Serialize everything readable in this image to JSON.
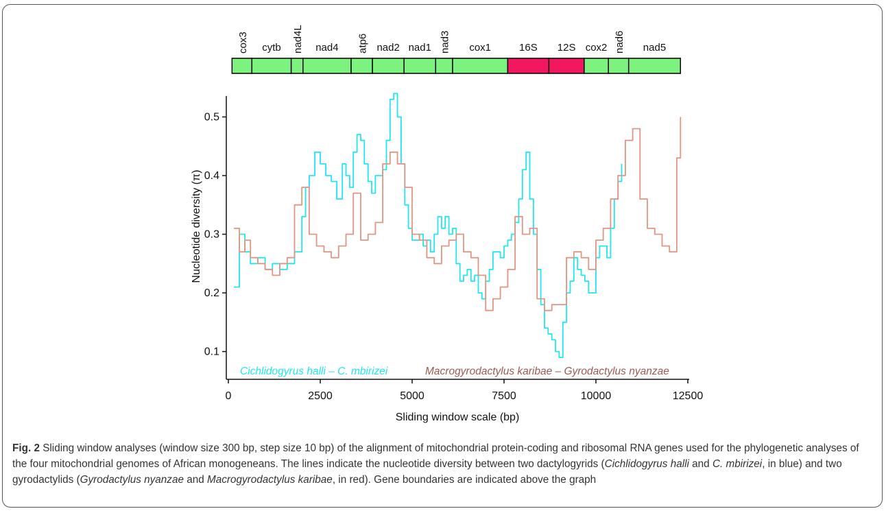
{
  "chart_data": {
    "type": "line",
    "xlabel": "Sliding window scale (bp)",
    "ylabel": "Nucleotide diversity (π)",
    "xlim": [
      0,
      12500
    ],
    "ylim": [
      0.055,
      0.545
    ],
    "xticks": [
      0,
      2500,
      5000,
      7500,
      10000,
      12500
    ],
    "yticks": [
      0.1,
      0.2,
      0.3,
      0.4,
      0.5
    ],
    "grid": false,
    "gene_map": [
      {
        "name": "cox3",
        "start": 100,
        "end": 640,
        "type": "protein",
        "rotated": true
      },
      {
        "name": "cytb",
        "start": 640,
        "end": 1710,
        "type": "protein",
        "rotated": false
      },
      {
        "name": "nad4L",
        "start": 1710,
        "end": 2030,
        "type": "protein",
        "rotated": true
      },
      {
        "name": "nad4",
        "start": 2030,
        "end": 3340,
        "type": "protein",
        "rotated": false
      },
      {
        "name": "atp6",
        "start": 3340,
        "end": 3920,
        "type": "protein",
        "rotated": true
      },
      {
        "name": "nad2",
        "start": 3920,
        "end": 4780,
        "type": "protein",
        "rotated": false
      },
      {
        "name": "nad1",
        "start": 4780,
        "end": 5640,
        "type": "protein",
        "rotated": false
      },
      {
        "name": "nad3",
        "start": 5640,
        "end": 6100,
        "type": "protein",
        "rotated": true
      },
      {
        "name": "cox1",
        "start": 6100,
        "end": 7600,
        "type": "protein",
        "rotated": false
      },
      {
        "name": "16S",
        "start": 7600,
        "end": 8720,
        "type": "rRNA",
        "rotated": false
      },
      {
        "name": "12S",
        "start": 8720,
        "end": 9680,
        "type": "rRNA",
        "rotated": false
      },
      {
        "name": "cox2",
        "start": 9680,
        "end": 10340,
        "type": "protein",
        "rotated": false
      },
      {
        "name": "nad6",
        "start": 10340,
        "end": 10890,
        "type": "protein",
        "rotated": true
      },
      {
        "name": "nad5",
        "start": 10890,
        "end": 12300,
        "type": "protein",
        "rotated": false
      }
    ],
    "series": [
      {
        "name": "Cichlidogyrus halli – C. mbirizei",
        "color": "#22e6ee",
        "x": [
          150,
          300,
          450,
          600,
          800,
          1000,
          1200,
          1400,
          1600,
          1800,
          2000,
          2100,
          2200,
          2350,
          2500,
          2650,
          2800,
          2950,
          3100,
          3200,
          3300,
          3400,
          3500,
          3600,
          3700,
          3800,
          3900,
          4000,
          4100,
          4200,
          4300,
          4400,
          4500,
          4600,
          4700,
          4800,
          4900,
          5000,
          5100,
          5200,
          5300,
          5400,
          5500,
          5600,
          5700,
          5800,
          5900,
          6000,
          6100,
          6200,
          6300,
          6400,
          6500,
          6600,
          6700,
          6800,
          6900,
          7000,
          7100,
          7200,
          7300,
          7400,
          7500,
          7600,
          7700,
          7800,
          7900,
          8000,
          8100,
          8200,
          8300,
          8400,
          8500,
          8600,
          8700,
          8800,
          8900,
          9000,
          9100,
          9200,
          9300,
          9400,
          9500,
          9600,
          9700,
          9800,
          9900,
          10000,
          10100,
          10200,
          10300,
          10400,
          10500,
          10600,
          10700
        ],
        "y": [
          0.21,
          0.3,
          0.27,
          0.25,
          0.26,
          0.24,
          0.25,
          0.24,
          0.25,
          0.27,
          0.33,
          0.38,
          0.4,
          0.44,
          0.42,
          0.4,
          0.39,
          0.36,
          0.42,
          0.4,
          0.38,
          0.44,
          0.47,
          0.46,
          0.42,
          0.39,
          0.37,
          0.4,
          0.4,
          0.41,
          0.46,
          0.53,
          0.54,
          0.5,
          0.42,
          0.35,
          0.31,
          0.29,
          0.29,
          0.3,
          0.28,
          0.29,
          0.27,
          0.3,
          0.33,
          0.31,
          0.33,
          0.3,
          0.31,
          0.25,
          0.22,
          0.23,
          0.24,
          0.22,
          0.23,
          0.2,
          0.19,
          0.22,
          0.24,
          0.27,
          0.27,
          0.26,
          0.28,
          0.29,
          0.3,
          0.32,
          0.36,
          0.41,
          0.44,
          0.36,
          0.3,
          0.24,
          0.18,
          0.14,
          0.13,
          0.12,
          0.1,
          0.09,
          0.15,
          0.2,
          0.22,
          0.26,
          0.24,
          0.23,
          0.22,
          0.2,
          0.2,
          0.26,
          0.28,
          0.28,
          0.26,
          0.31,
          0.36,
          0.39,
          0.42
        ]
      },
      {
        "name": "Macrogyrodactylus karibae – Gyrodactylus nyanzae",
        "color": "#e09583",
        "x": [
          150,
          300,
          450,
          600,
          800,
          1000,
          1200,
          1400,
          1600,
          1800,
          2000,
          2200,
          2400,
          2600,
          2800,
          3000,
          3200,
          3400,
          3600,
          3800,
          4000,
          4200,
          4400,
          4600,
          4800,
          5000,
          5200,
          5400,
          5600,
          5800,
          6000,
          6200,
          6400,
          6600,
          6800,
          7000,
          7200,
          7400,
          7600,
          7800,
          8000,
          8200,
          8400,
          8600,
          8800,
          9000,
          9200,
          9400,
          9600,
          9800,
          10000,
          10200,
          10400,
          10600,
          10800,
          11000,
          11200,
          11400,
          11600,
          11800,
          12000,
          12200,
          12300
        ],
        "y": [
          0.31,
          0.27,
          0.29,
          0.26,
          0.25,
          0.24,
          0.23,
          0.25,
          0.26,
          0.35,
          0.38,
          0.3,
          0.28,
          0.27,
          0.26,
          0.28,
          0.3,
          0.37,
          0.29,
          0.3,
          0.32,
          0.42,
          0.44,
          0.42,
          0.38,
          0.3,
          0.29,
          0.26,
          0.25,
          0.28,
          0.29,
          0.3,
          0.27,
          0.26,
          0.23,
          0.17,
          0.19,
          0.21,
          0.24,
          0.33,
          0.3,
          0.31,
          0.19,
          0.17,
          0.18,
          0.18,
          0.26,
          0.27,
          0.26,
          0.24,
          0.29,
          0.31,
          0.36,
          0.4,
          0.46,
          0.48,
          0.36,
          0.31,
          0.3,
          0.28,
          0.27,
          0.43,
          0.5
        ]
      }
    ]
  },
  "caption": {
    "fig_label": "Fig. 2",
    "part1": " Sliding window analyses (window size 300 bp, step size 10 bp) of the alignment of mitochondrial protein-coding and ribosomal RNA genes used for the phylogenetic analyses of the four mitochondrial genomes of African monogeneans. The lines indicate the nucleotide diversity between two dactylogyrids (",
    "sp1": "Cichlidogyrus halli",
    "part2": " and ",
    "sp2": "C. mbirizei",
    "part3": ", in blue) and two gyrodactylids (",
    "sp3": "Gyrodactylus nyanzae",
    "part4": " and ",
    "sp4": "Macrogyrodactylus karibae",
    "part5": ", in red). Gene boundaries are indicated above the graph"
  },
  "colors": {
    "protein_gene": "#7ef27e",
    "rrna_gene": "#f2185f",
    "axis": "#111111"
  }
}
